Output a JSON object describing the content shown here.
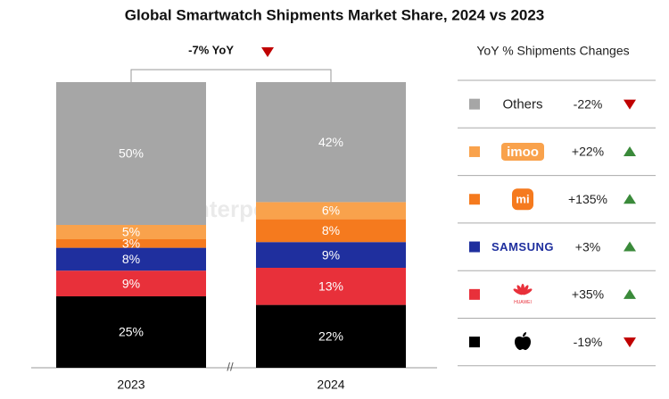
{
  "chart_data": {
    "type": "stacked_bar",
    "title": "Global Smartwatch Shipments Market Share, 2024 vs 2023",
    "watermark": "Counterpoint",
    "categories": [
      "2023",
      "2024"
    ],
    "ylim": [
      0,
      100
    ],
    "annotation": {
      "value": -7,
      "label": "-7% YoY"
    },
    "legend_title": "YoY % Shipments Changes",
    "series": [
      {
        "color": "#000000",
        "values": [
          25,
          22
        ],
        "value_labels": [
          "25%",
          "22%"
        ],
        "yoy": -19,
        "yoy_label": "-19%"
      },
      {
        "name": "HUAWEI",
        "color": "#e8303a",
        "values": [
          9,
          13
        ],
        "value_labels": [
          "9%",
          "13%"
        ],
        "yoy": 35,
        "yoy_label": "+35%"
      },
      {
        "name": "SAMSUNG",
        "color": "#1f2f9e",
        "values": [
          8,
          9
        ],
        "value_labels": [
          "8%",
          "9%"
        ],
        "yoy": 3,
        "yoy_label": "+3%"
      },
      {
        "name": "mi",
        "color": "#f57a1e",
        "values": [
          3,
          8
        ],
        "value_labels": [
          "3%",
          "8%"
        ],
        "yoy": 135,
        "yoy_label": "+135%"
      },
      {
        "name": "imoo",
        "color": "#f9a24c",
        "values": [
          5,
          6
        ],
        "value_labels": [
          "5%",
          "6%"
        ],
        "yoy": 22,
        "yoy_label": "+22%"
      },
      {
        "name": "Others",
        "color": "#a6a6a6",
        "values": [
          50,
          42
        ],
        "value_labels": [
          "50%",
          "42%"
        ],
        "yoy": -22,
        "yoy_label": "-22%"
      }
    ]
  }
}
